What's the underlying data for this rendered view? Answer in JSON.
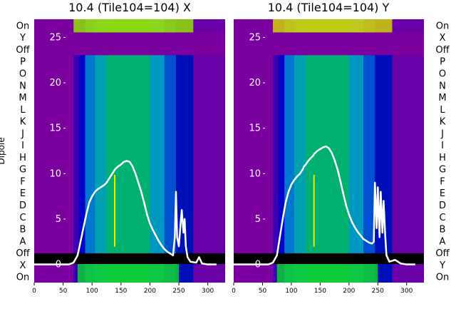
{
  "chart_data": [
    {
      "type": "heatmap",
      "title": "10.4 (Tile104=104) X",
      "ylabel": "Dipole",
      "dipole_labels": [
        "On",
        "Y",
        "Off",
        "P",
        "O",
        "N",
        "M",
        "L",
        "K",
        "J",
        "I",
        "H",
        "G",
        "F",
        "E",
        "D",
        "C",
        "B",
        "A",
        "Off",
        "X",
        "On"
      ],
      "x_ticks": [
        0,
        50,
        100,
        150,
        200,
        250,
        300
      ],
      "y_ticks": [
        0,
        5,
        10,
        15,
        20,
        25
      ],
      "xlim": [
        0,
        330
      ],
      "ylim": [
        -2,
        27
      ],
      "grid": false,
      "colormap": "nipy_spectral",
      "heatmap_bands": [
        {
          "x0": 0,
          "x1": 68,
          "color": "#7a00a0"
        },
        {
          "x0": 68,
          "x1": 78,
          "color": "#3a00b0"
        },
        {
          "x0": 78,
          "x1": 88,
          "color": "#0000c8"
        },
        {
          "x0": 88,
          "x1": 105,
          "color": "#0078d0"
        },
        {
          "x0": 105,
          "x1": 125,
          "color": "#00a0b0"
        },
        {
          "x0": 125,
          "x1": 200,
          "color": "#00b070"
        },
        {
          "x0": 200,
          "x1": 225,
          "color": "#0098c0"
        },
        {
          "x0": 225,
          "x1": 245,
          "color": "#0050d0"
        },
        {
          "x0": 245,
          "x1": 275,
          "color": "#0010b8"
        },
        {
          "x0": 275,
          "x1": 330,
          "color": "#6a00a8"
        }
      ],
      "line_series": {
        "color": "#ffffff",
        "x": [
          0,
          60,
          68,
          75,
          80,
          85,
          90,
          95,
          100,
          105,
          110,
          115,
          120,
          125,
          128,
          132,
          135,
          138,
          140,
          145,
          150,
          155,
          160,
          165,
          170,
          175,
          180,
          185,
          190,
          195,
          200,
          205,
          210,
          215,
          220,
          225,
          230,
          235,
          240,
          243,
          245,
          247,
          250,
          253,
          255,
          258,
          260,
          262,
          265,
          270,
          280,
          285,
          290,
          300,
          315
        ],
        "y": [
          0,
          0,
          0.2,
          1.0,
          2.5,
          4.0,
          5.5,
          6.8,
          7.5,
          8.0,
          8.3,
          8.5,
          8.7,
          9.0,
          9.3,
          9.7,
          10.0,
          10.3,
          10.5,
          10.8,
          11.0,
          11.3,
          11.4,
          11.3,
          10.8,
          10.0,
          9.0,
          8.0,
          6.8,
          5.5,
          4.5,
          3.8,
          3.2,
          2.6,
          2.1,
          1.7,
          1.4,
          1.2,
          1.0,
          3.0,
          8.0,
          3.0,
          2.0,
          4.5,
          6.0,
          3.5,
          5.0,
          2.0,
          0.8,
          0.3,
          0.2,
          0.8,
          0.1,
          0,
          0
        ]
      }
    },
    {
      "type": "heatmap",
      "title": "10.4 (Tile104=104) Y",
      "dipole_labels": [
        "On",
        "X",
        "Off",
        "P",
        "O",
        "N",
        "M",
        "L",
        "K",
        "J",
        "I",
        "H",
        "G",
        "F",
        "E",
        "D",
        "C",
        "B",
        "A",
        "Off",
        "Y",
        "On"
      ],
      "x_ticks": [
        0,
        50,
        100,
        150,
        200,
        250,
        300
      ],
      "y_ticks": [
        0,
        5,
        10,
        15,
        20,
        25
      ],
      "xlim": [
        0,
        330
      ],
      "ylim": [
        -2,
        27
      ],
      "grid": false,
      "colormap": "nipy_spectral",
      "heatmap_bands": [
        {
          "x0": 0,
          "x1": 68,
          "color": "#7a00a0"
        },
        {
          "x0": 68,
          "x1": 78,
          "color": "#3a00b0"
        },
        {
          "x0": 78,
          "x1": 88,
          "color": "#0000c8"
        },
        {
          "x0": 88,
          "x1": 105,
          "color": "#0078d0"
        },
        {
          "x0": 105,
          "x1": 125,
          "color": "#00a0b0"
        },
        {
          "x0": 125,
          "x1": 200,
          "color": "#00b070"
        },
        {
          "x0": 200,
          "x1": 225,
          "color": "#0098c0"
        },
        {
          "x0": 225,
          "x1": 245,
          "color": "#0050d0"
        },
        {
          "x0": 245,
          "x1": 275,
          "color": "#0010b8"
        },
        {
          "x0": 275,
          "x1": 330,
          "color": "#6a00a8"
        }
      ],
      "line_series": {
        "color": "#ffffff",
        "x": [
          0,
          60,
          68,
          75,
          80,
          85,
          90,
          95,
          100,
          105,
          110,
          115,
          118,
          120,
          122,
          125,
          128,
          132,
          135,
          138,
          140,
          145,
          150,
          155,
          160,
          165,
          170,
          175,
          180,
          185,
          190,
          195,
          200,
          205,
          210,
          215,
          220,
          225,
          230,
          235,
          240,
          243,
          245,
          248,
          250,
          253,
          255,
          258,
          260,
          263,
          265,
          270,
          280,
          290,
          300,
          315
        ],
        "y": [
          0,
          0,
          0.2,
          1.0,
          3.0,
          5.0,
          6.8,
          8.0,
          8.8,
          9.3,
          9.7,
          10.0,
          10.3,
          10.5,
          10.8,
          11.0,
          11.3,
          11.6,
          11.8,
          12.0,
          12.2,
          12.5,
          12.7,
          12.9,
          13.0,
          12.8,
          12.3,
          11.5,
          10.5,
          9.2,
          7.8,
          6.5,
          5.5,
          4.7,
          4.1,
          3.6,
          3.2,
          2.8,
          2.6,
          2.4,
          2.3,
          2.5,
          9.0,
          4.0,
          8.5,
          3.0,
          8.0,
          3.5,
          7.0,
          3.0,
          1.0,
          0.3,
          0.5,
          0.1,
          0,
          0
        ]
      }
    }
  ]
}
